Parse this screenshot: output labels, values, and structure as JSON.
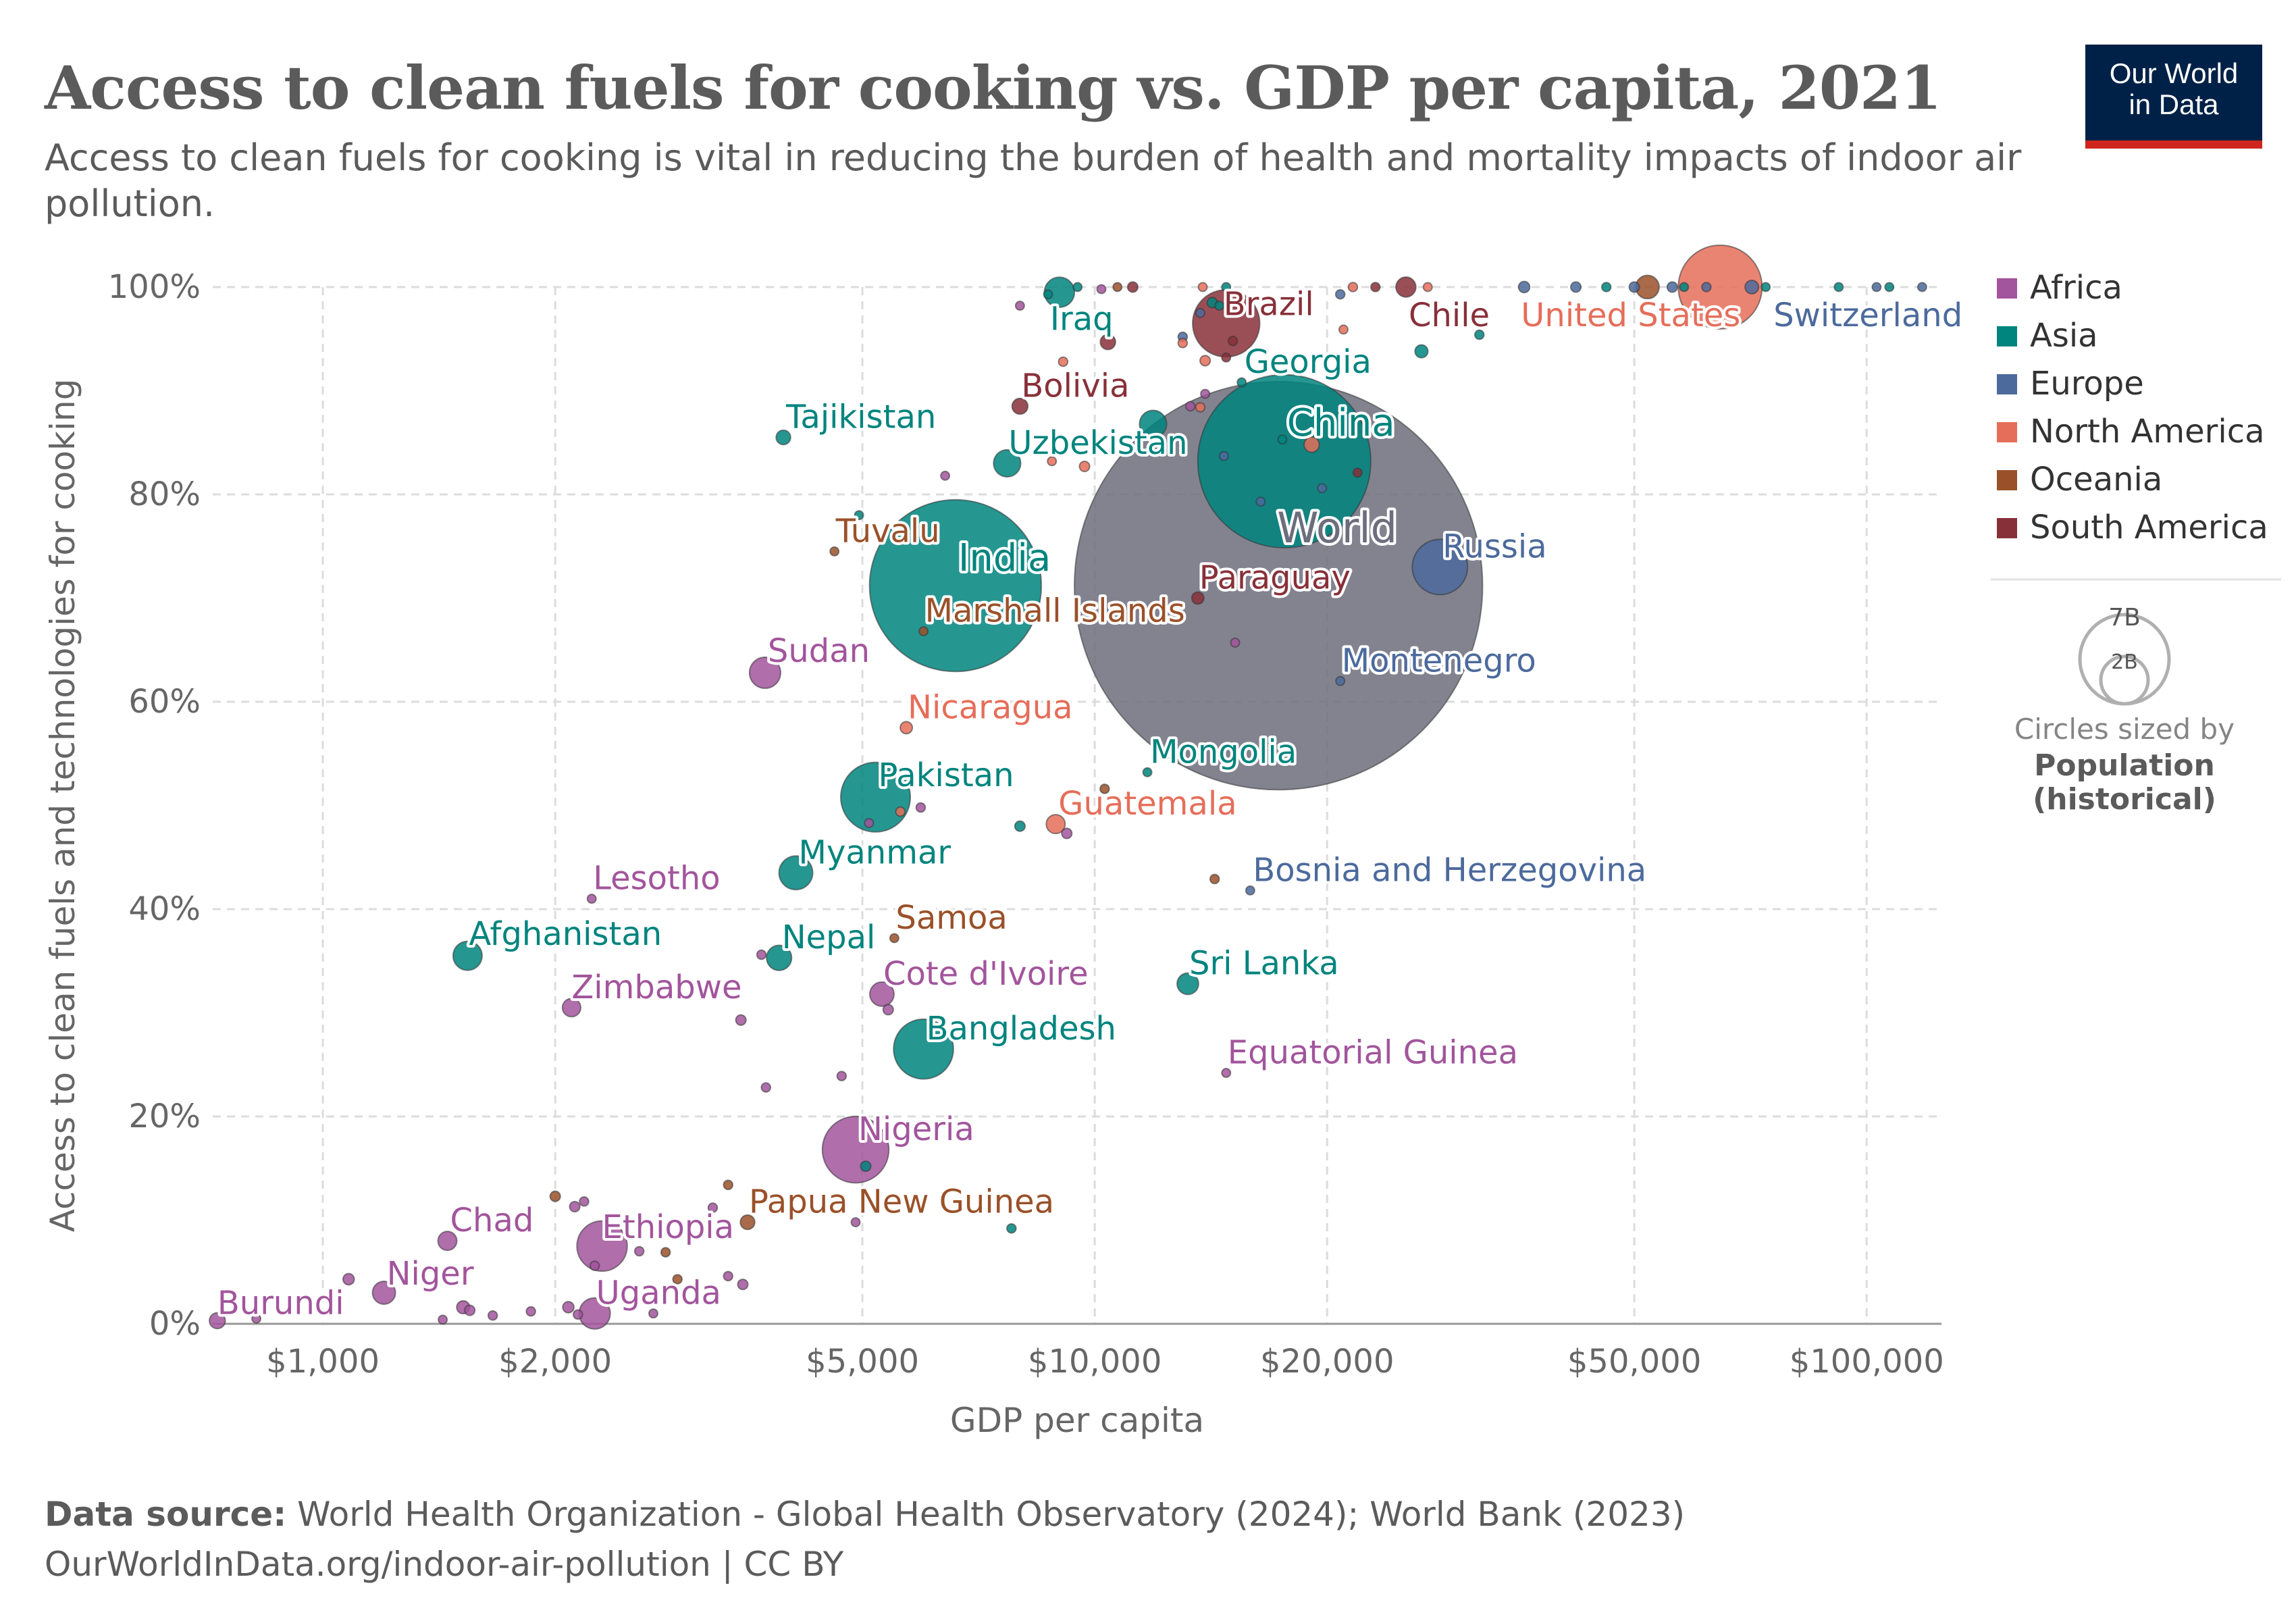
{
  "header": {
    "title": "Access to clean fuels for cooking vs. GDP per capita, 2021",
    "subtitle": "Access to clean fuels for cooking is vital in reducing the burden of health and mortality impacts of indoor air pollution.",
    "logo_line1": "Our World",
    "logo_line2": "in Data"
  },
  "footer": {
    "source_label": "Data source:",
    "source_text": "World Health Organization - Global Health Observatory (2024); World Bank (2023)",
    "url_line": "OurWorldInData.org/indoor-air-pollution | CC BY"
  },
  "size_legend": {
    "big": "7B",
    "small": "2B",
    "line1": "Circles sized by",
    "line2": "Population",
    "line3": "(historical)"
  },
  "colors": {
    "Africa": "#a2559c",
    "Asia": "#00847e",
    "Europe": "#4c6a9c",
    "North America": "#e56e5a",
    "Oceania": "#9a5129",
    "South America": "#883039",
    "World": "#6d6d7d"
  },
  "chart_data": {
    "type": "scatter",
    "xlabel": "GDP per capita",
    "ylabel": "Access to clean fuels and technologies for cooking",
    "x_scale": "log",
    "xlim": [
      720,
      125000
    ],
    "ylim": [
      0,
      100
    ],
    "x_ticks": [
      {
        "v": 1000,
        "label": "$1,000"
      },
      {
        "v": 2000,
        "label": "$2,000"
      },
      {
        "v": 5000,
        "label": "$5,000"
      },
      {
        "v": 10000,
        "label": "$10,000"
      },
      {
        "v": 20000,
        "label": "$20,000"
      },
      {
        "v": 50000,
        "label": "$50,000"
      },
      {
        "v": 100000,
        "label": "$100,000"
      }
    ],
    "y_ticks": [
      {
        "v": 0,
        "label": "0%"
      },
      {
        "v": 20,
        "label": "20%"
      },
      {
        "v": 40,
        "label": "40%"
      },
      {
        "v": 60,
        "label": "60%"
      },
      {
        "v": 80,
        "label": "80%"
      },
      {
        "v": 100,
        "label": "100%"
      }
    ],
    "grid": true,
    "legend_position": "right",
    "legend": [
      "Africa",
      "Asia",
      "Europe",
      "North America",
      "Oceania",
      "South America"
    ],
    "labeled_points": [
      {
        "name": "Burundi",
        "region": "Africa",
        "x": 730,
        "y": 0.3,
        "pop": 12
      },
      {
        "name": "Niger",
        "region": "Africa",
        "x": 1200,
        "y": 3,
        "pop": 25
      },
      {
        "name": "Chad",
        "region": "Africa",
        "x": 1450,
        "y": 8,
        "pop": 17
      },
      {
        "name": "Ethiopia",
        "region": "Africa",
        "x": 2300,
        "y": 7.5,
        "pop": 120
      },
      {
        "name": "Uganda",
        "region": "Africa",
        "x": 2250,
        "y": 1,
        "pop": 46
      },
      {
        "name": "Zimbabwe",
        "region": "Africa",
        "x": 2100,
        "y": 30.5,
        "pop": 16
      },
      {
        "name": "Afghanistan",
        "region": "Asia",
        "x": 1540,
        "y": 35.5,
        "pop": 40
      },
      {
        "name": "Lesotho",
        "region": "Africa",
        "x": 2230,
        "y": 41,
        "pop": 2.3
      },
      {
        "name": "Nepal",
        "region": "Asia",
        "x": 3900,
        "y": 35.3,
        "pop": 30
      },
      {
        "name": "Sudan",
        "region": "Africa",
        "x": 3740,
        "y": 62.8,
        "pop": 46
      },
      {
        "name": "Tajikistan",
        "region": "Asia",
        "x": 3950,
        "y": 85.5,
        "pop": 10
      },
      {
        "name": "Tuvalu",
        "region": "Oceania",
        "x": 4600,
        "y": 74.5,
        "pop": 0.01
      },
      {
        "name": "India",
        "region": "Asia",
        "x": 6600,
        "y": 71.2,
        "pop": 1400
      },
      {
        "name": "Marshall Islands",
        "region": "Oceania",
        "x": 6000,
        "y": 66.8,
        "pop": 0.04
      },
      {
        "name": "Nicaragua",
        "region": "North America",
        "x": 5700,
        "y": 57.5,
        "pop": 7
      },
      {
        "name": "Pakistan",
        "region": "Asia",
        "x": 5200,
        "y": 50.8,
        "pop": 230
      },
      {
        "name": "Myanmar",
        "region": "Asia",
        "x": 4100,
        "y": 43.5,
        "pop": 54
      },
      {
        "name": "Samoa",
        "region": "Oceania",
        "x": 5500,
        "y": 37.2,
        "pop": 0.2
      },
      {
        "name": "Cote d'Ivoire",
        "region": "Africa",
        "x": 5300,
        "y": 31.8,
        "pop": 28
      },
      {
        "name": "Bangladesh",
        "region": "Asia",
        "x": 6000,
        "y": 26.5,
        "pop": 170
      },
      {
        "name": "Nigeria",
        "region": "Africa",
        "x": 4900,
        "y": 16.8,
        "pop": 210
      },
      {
        "name": "Papua New Guinea",
        "region": "Oceania",
        "x": 3550,
        "y": 9.8,
        "pop": 10
      },
      {
        "name": "Iraq",
        "region": "Asia",
        "x": 9000,
        "y": 99.5,
        "pop": 43
      },
      {
        "name": "Bolivia",
        "region": "South America",
        "x": 8000,
        "y": 88.5,
        "pop": 12
      },
      {
        "name": "Uzbekistan",
        "region": "Asia",
        "x": 7700,
        "y": 83,
        "pop": 35
      },
      {
        "name": "Brazil",
        "region": "South America",
        "x": 14800,
        "y": 96.5,
        "pop": 214
      },
      {
        "name": "Georgia",
        "region": "Asia",
        "x": 15500,
        "y": 90.8,
        "pop": 3.7
      },
      {
        "name": "China",
        "region": "Asia",
        "x": 17600,
        "y": 83.2,
        "pop": 1420
      },
      {
        "name": "World",
        "region": "World",
        "x": 17300,
        "y": 71.2,
        "pop": 7900
      },
      {
        "name": "Paraguay",
        "region": "South America",
        "x": 13600,
        "y": 70,
        "pop": 7
      },
      {
        "name": "Mongolia",
        "region": "Asia",
        "x": 11700,
        "y": 53.2,
        "pop": 3.4
      },
      {
        "name": "Guatemala",
        "region": "North America",
        "x": 8900,
        "y": 48.2,
        "pop": 17
      },
      {
        "name": "Bosnia and Herzegovina",
        "region": "Europe",
        "x": 15900,
        "y": 41.8,
        "pop": 3.3
      },
      {
        "name": "Sri Lanka",
        "region": "Asia",
        "x": 13200,
        "y": 32.8,
        "pop": 22
      },
      {
        "name": "Equatorial Guinea",
        "region": "Africa",
        "x": 14800,
        "y": 24.2,
        "pop": 1.6
      },
      {
        "name": "Montenegro",
        "region": "Europe",
        "x": 20800,
        "y": 62,
        "pop": 0.6
      },
      {
        "name": "Russia",
        "region": "Europe",
        "x": 28000,
        "y": 73,
        "pop": 145
      },
      {
        "name": "Chile",
        "region": "South America",
        "x": 25300,
        "y": 100,
        "pop": 19
      },
      {
        "name": "United States",
        "region": "North America",
        "x": 64600,
        "y": 100,
        "pop": 333
      },
      {
        "name": "Switzerland",
        "region": "Europe",
        "x": 71000,
        "y": 100,
        "pop": 8.7
      }
    ],
    "other_points": [
      {
        "region": "Africa",
        "x": 820,
        "y": 0.5,
        "pop": 2
      },
      {
        "region": "Africa",
        "x": 1080,
        "y": 4.3,
        "pop": 6
      },
      {
        "region": "Africa",
        "x": 1430,
        "y": 0.4,
        "pop": 3
      },
      {
        "region": "Africa",
        "x": 1520,
        "y": 1.6,
        "pop": 8
      },
      {
        "region": "Africa",
        "x": 1550,
        "y": 1.3,
        "pop": 5
      },
      {
        "region": "Africa",
        "x": 1660,
        "y": 0.8,
        "pop": 4
      },
      {
        "region": "Africa",
        "x": 1860,
        "y": 1.2,
        "pop": 4
      },
      {
        "region": "Africa",
        "x": 2080,
        "y": 1.6,
        "pop": 6
      },
      {
        "region": "Africa",
        "x": 2140,
        "y": 0.9,
        "pop": 4
      },
      {
        "region": "Africa",
        "x": 2120,
        "y": 11.3,
        "pop": 5
      },
      {
        "region": "Africa",
        "x": 2180,
        "y": 11.8,
        "pop": 4
      },
      {
        "region": "Africa",
        "x": 2250,
        "y": 5.6,
        "pop": 4
      },
      {
        "region": "Africa",
        "x": 2570,
        "y": 7,
        "pop": 4
      },
      {
        "region": "Africa",
        "x": 2680,
        "y": 1,
        "pop": 3
      },
      {
        "region": "Africa",
        "x": 3200,
        "y": 11.2,
        "pop": 4
      },
      {
        "region": "Africa",
        "x": 3350,
        "y": 4.6,
        "pop": 4
      },
      {
        "region": "Africa",
        "x": 3500,
        "y": 3.8,
        "pop": 5
      },
      {
        "region": "Africa",
        "x": 3480,
        "y": 29.3,
        "pop": 5
      },
      {
        "region": "Africa",
        "x": 3750,
        "y": 22.8,
        "pop": 4
      },
      {
        "region": "Africa",
        "x": 3700,
        "y": 35.6,
        "pop": 4
      },
      {
        "region": "Africa",
        "x": 4700,
        "y": 23.9,
        "pop": 4
      },
      {
        "region": "Africa",
        "x": 4900,
        "y": 9.8,
        "pop": 3
      },
      {
        "region": "Africa",
        "x": 5100,
        "y": 48.3,
        "pop": 3
      },
      {
        "region": "Africa",
        "x": 5400,
        "y": 30.3,
        "pop": 5
      },
      {
        "region": "Africa",
        "x": 5950,
        "y": 49.8,
        "pop": 4
      },
      {
        "region": "Africa",
        "x": 6400,
        "y": 81.8,
        "pop": 3
      },
      {
        "region": "Africa",
        "x": 8000,
        "y": 98.2,
        "pop": 3
      },
      {
        "region": "Africa",
        "x": 9200,
        "y": 47.3,
        "pop": 5
      },
      {
        "region": "Africa",
        "x": 10200,
        "y": 99.8,
        "pop": 3
      },
      {
        "region": "Africa",
        "x": 13300,
        "y": 88.5,
        "pop": 4
      },
      {
        "region": "Africa",
        "x": 13900,
        "y": 89.7,
        "pop": 3
      },
      {
        "region": "Africa",
        "x": 15200,
        "y": 65.7,
        "pop": 3
      },
      {
        "region": "Asia",
        "x": 4950,
        "y": 78,
        "pop": 1
      },
      {
        "region": "Asia",
        "x": 5050,
        "y": 15.2,
        "pop": 5
      },
      {
        "region": "Asia",
        "x": 8000,
        "y": 48,
        "pop": 5
      },
      {
        "region": "Asia",
        "x": 7800,
        "y": 9.2,
        "pop": 4
      },
      {
        "region": "Asia",
        "x": 8700,
        "y": 99.3,
        "pop": 3
      },
      {
        "region": "Asia",
        "x": 9500,
        "y": 100,
        "pop": 3
      },
      {
        "region": "Asia",
        "x": 11900,
        "y": 86.8,
        "pop": 35
      },
      {
        "region": "Asia",
        "x": 14200,
        "y": 98.5,
        "pop": 5
      },
      {
        "region": "Asia",
        "x": 14500,
        "y": 98.2,
        "pop": 3
      },
      {
        "region": "Asia",
        "x": 14800,
        "y": 100,
        "pop": 3
      },
      {
        "region": "Asia",
        "x": 17500,
        "y": 85.3,
        "pop": 3
      },
      {
        "region": "Asia",
        "x": 26500,
        "y": 93.8,
        "pop": 8
      },
      {
        "region": "Asia",
        "x": 31500,
        "y": 95.4,
        "pop": 4
      },
      {
        "region": "Asia",
        "x": 46000,
        "y": 100,
        "pop": 4
      },
      {
        "region": "Asia",
        "x": 58000,
        "y": 100,
        "pop": 3
      },
      {
        "region": "Asia",
        "x": 74000,
        "y": 100,
        "pop": 3
      },
      {
        "region": "Asia",
        "x": 92000,
        "y": 100,
        "pop": 3
      },
      {
        "region": "Asia",
        "x": 107000,
        "y": 100,
        "pop": 3
      },
      {
        "region": "Europe",
        "x": 13000,
        "y": 95.2,
        "pop": 4
      },
      {
        "region": "Europe",
        "x": 13700,
        "y": 97.5,
        "pop": 3
      },
      {
        "region": "Europe",
        "x": 14700,
        "y": 83.7,
        "pop": 2
      },
      {
        "region": "Europe",
        "x": 16400,
        "y": 79.3,
        "pop": 2
      },
      {
        "region": "Europe",
        "x": 19700,
        "y": 80.6,
        "pop": 2
      },
      {
        "region": "Europe",
        "x": 20800,
        "y": 99.3,
        "pop": 4
      },
      {
        "region": "Europe",
        "x": 36000,
        "y": 100,
        "pop": 6
      },
      {
        "region": "Europe",
        "x": 42000,
        "y": 100,
        "pop": 5
      },
      {
        "region": "Europe",
        "x": 50000,
        "y": 100,
        "pop": 5
      },
      {
        "region": "Europe",
        "x": 56000,
        "y": 100,
        "pop": 5
      },
      {
        "region": "Europe",
        "x": 62000,
        "y": 100,
        "pop": 4
      },
      {
        "region": "Europe",
        "x": 103000,
        "y": 100,
        "pop": 3
      },
      {
        "region": "Europe",
        "x": 118000,
        "y": 100,
        "pop": 3
      },
      {
        "region": "North America",
        "x": 5600,
        "y": 49.4,
        "pop": 4
      },
      {
        "region": "North America",
        "x": 8800,
        "y": 83.2,
        "pop": 3
      },
      {
        "region": "North America",
        "x": 9100,
        "y": 92.8,
        "pop": 4
      },
      {
        "region": "North America",
        "x": 9700,
        "y": 82.7,
        "pop": 5
      },
      {
        "region": "North America",
        "x": 13000,
        "y": 94.6,
        "pop": 4
      },
      {
        "region": "North America",
        "x": 13900,
        "y": 92.9,
        "pop": 5
      },
      {
        "region": "North America",
        "x": 13700,
        "y": 88.4,
        "pop": 4
      },
      {
        "region": "North America",
        "x": 13800,
        "y": 100,
        "pop": 3
      },
      {
        "region": "North America",
        "x": 19100,
        "y": 84.8,
        "pop": 11
      },
      {
        "region": "North America",
        "x": 21000,
        "y": 95.9,
        "pop": 3
      },
      {
        "region": "North America",
        "x": 21600,
        "y": 100,
        "pop": 4
      },
      {
        "region": "North America",
        "x": 27000,
        "y": 100,
        "pop": 3
      },
      {
        "region": "Oceania",
        "x": 2000,
        "y": 12.3,
        "pop": 5
      },
      {
        "region": "Oceania",
        "x": 2780,
        "y": 6.9,
        "pop": 4
      },
      {
        "region": "Oceania",
        "x": 2880,
        "y": 4.3,
        "pop": 4
      },
      {
        "region": "Oceania",
        "x": 3350,
        "y": 13.4,
        "pop": 4
      },
      {
        "region": "Oceania",
        "x": 10300,
        "y": 51.6,
        "pop": 4
      },
      {
        "region": "Oceania",
        "x": 14300,
        "y": 42.9,
        "pop": 4
      },
      {
        "region": "Oceania",
        "x": 10700,
        "y": 100,
        "pop": 3
      },
      {
        "region": "Oceania",
        "x": 52000,
        "y": 100,
        "pop": 26
      },
      {
        "region": "South America",
        "x": 10400,
        "y": 94.7,
        "pop": 11
      },
      {
        "region": "South America",
        "x": 11200,
        "y": 100,
        "pop": 5
      },
      {
        "region": "South America",
        "x": 14800,
        "y": 93.2,
        "pop": 3
      },
      {
        "region": "South America",
        "x": 15100,
        "y": 94.8,
        "pop": 4
      },
      {
        "region": "South America",
        "x": 21900,
        "y": 82.1,
        "pop": 3
      },
      {
        "region": "South America",
        "x": 23100,
        "y": 100,
        "pop": 4
      }
    ]
  }
}
